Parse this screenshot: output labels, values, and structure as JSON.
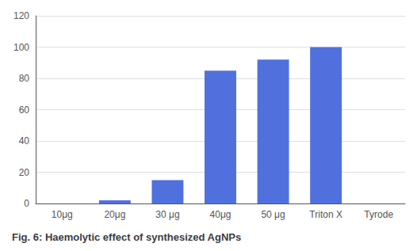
{
  "chart_data": {
    "type": "bar",
    "title": "Fig. 6: Haemolytic effect of synthesized AgNPs",
    "categories": [
      "10μg",
      "20μg",
      "30 μg",
      "40μg",
      "50 μg",
      "Triton X",
      "Tyrode"
    ],
    "values": [
      0,
      2,
      15,
      85,
      92,
      100,
      0
    ],
    "ylim": [
      0,
      120
    ],
    "yticks": [
      0,
      20,
      40,
      60,
      80,
      100,
      120
    ],
    "grid": true
  }
}
